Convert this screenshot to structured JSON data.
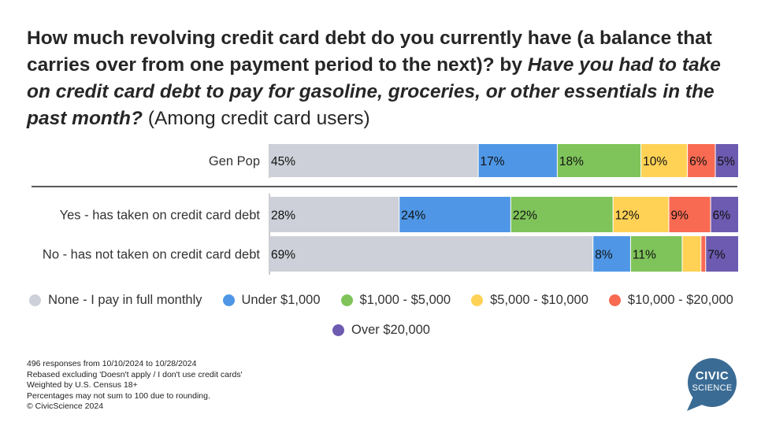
{
  "title": {
    "main": "How much revolving credit card debt do you currently have (a balance that carries over from one payment period to the next)?",
    "by": "by",
    "question": "Have you had to take on credit card debt to pay for gasoline, groceries, or other essentials in the past month?",
    "note": "(Among credit card users)"
  },
  "chart_data": {
    "type": "bar",
    "orientation": "horizontal-stacked-100",
    "categories": [
      "Gen Pop",
      "Yes - has taken on credit card debt",
      "No - has not taken on credit card debt"
    ],
    "series": [
      {
        "name": "None - I pay in full monthly",
        "color": "#cdd0d8",
        "values": [
          45,
          28,
          69
        ],
        "labels": [
          "45%",
          "28%",
          "69%"
        ]
      },
      {
        "name": "Under $1,000",
        "color": "#4f97e6",
        "values": [
          17,
          24,
          8
        ],
        "labels": [
          "17%",
          "24%",
          "8%"
        ]
      },
      {
        "name": "$1,000 - $5,000",
        "color": "#7fc45a",
        "values": [
          18,
          22,
          11
        ],
        "labels": [
          "18%",
          "22%",
          "11%"
        ]
      },
      {
        "name": "$5,000 - $10,000",
        "color": "#ffd256",
        "values": [
          10,
          12,
          4
        ],
        "labels": [
          "10%",
          "12%",
          ""
        ]
      },
      {
        "name": "$10,000 - $20,000",
        "color": "#f86a52",
        "values": [
          6,
          9,
          1
        ],
        "labels": [
          "6%",
          "9%",
          ""
        ]
      },
      {
        "name": "Over $20,000",
        "color": "#6c5bb0",
        "values": [
          5,
          6,
          7
        ],
        "labels": [
          "5%",
          "6%",
          "7%"
        ]
      }
    ],
    "legend_position": "bottom",
    "grid": false
  },
  "footnotes": [
    "496 responses from 10/10/2024 to 10/28/2024",
    "Rebased excluding 'Doesn't apply / I don't use credit cards'",
    "Weighted by U.S. Census 18+",
    "Percentages may not sum to 100 due to rounding.",
    "© CivicScience 2024"
  ],
  "logo": {
    "line1": "CIVIC",
    "line2": "SCIENCE",
    "color": "#3a6b94"
  }
}
